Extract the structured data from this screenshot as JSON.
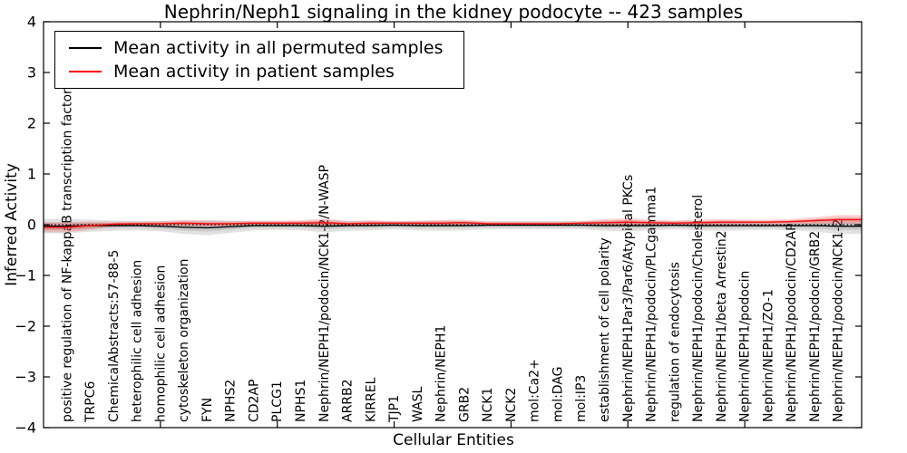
{
  "figure": {
    "title": "Nephrin/Neph1 signaling in the kidney podocyte -- 423 samples",
    "xlabel": "Cellular Entities",
    "ylabel": "Inferred Activity"
  },
  "legend": {
    "position": "upper left",
    "items": [
      {
        "label": "Mean activity in all permuted samples",
        "color": "#000000"
      },
      {
        "label": "Mean activity in patient samples",
        "color": "#ff0000"
      }
    ]
  },
  "chart_data": {
    "type": "line",
    "title": "Nephrin/Neph1 signaling in the kidney podocyte -- 423 samples",
    "xlabel": "Cellular Entities",
    "ylabel": "Inferred Activity",
    "ylim": [
      -4,
      4
    ],
    "yticks": [
      -4,
      -3,
      -2,
      -1,
      0,
      1,
      2,
      3,
      4
    ],
    "xticks": [
      5,
      10,
      15,
      20,
      25,
      30
    ],
    "grid": false,
    "legend_position": "upper left",
    "zero_line": {
      "y": 0,
      "style": "dotted",
      "color": "#000000"
    },
    "categories": [
      "positive regulation of NF-kappaB transcription factor activity",
      "TRPC6",
      "ChemicalAbstracts:57-88-5",
      "heterophilic cell adhesion",
      "homophilic cell adhesion",
      "cytoskeleton organization",
      "FYN",
      "NPHS2",
      "CD2AP",
      "PLCG1",
      "NPHS1",
      "Nephrin/NEPH1/podocin/NCK1-2/N-WASP",
      "ARRB2",
      "KIRREL",
      "TJP1",
      "WASL",
      "Nephrin/NEPH1",
      "GRB2",
      "NCK1",
      "NCK2",
      "mol:Ca2+",
      "mol:DAG",
      "mol:IP3",
      "establishment of cell polarity",
      "Nephrin/NEPH1Par3/Par6/Atypical PKCs",
      "Nephrin/NEPH1/podocin/PLCgamma1",
      "regulation of endocytosis",
      "Nephrin/NEPH1/podocin/Cholesterol",
      "Nephrin/NEPH1/beta Arrestin2",
      "Nephrin/NEPH1/podocin",
      "Nephrin/NEPH1/ZO-1",
      "Nephrin/NEPH1/podocin/CD2AP",
      "Nephrin/NEPH1/podocin/GRB2",
      "Nephrin/NEPH1/podocin/NCK1-2"
    ],
    "series": [
      {
        "name": "Mean activity in all permuted samples",
        "color": "#000000",
        "band_color": "rgba(120,120,120,0.22)",
        "values": [
          -0.03,
          -0.02,
          -0.02,
          -0.02,
          -0.03,
          -0.05,
          -0.06,
          -0.04,
          -0.02,
          -0.02,
          -0.02,
          -0.03,
          -0.02,
          -0.02,
          -0.01,
          -0.02,
          -0.02,
          -0.02,
          -0.01,
          -0.01,
          -0.01,
          -0.01,
          -0.01,
          -0.02,
          -0.02,
          -0.02,
          -0.01,
          -0.02,
          -0.02,
          -0.02,
          -0.02,
          -0.02,
          -0.02,
          -0.03
        ],
        "band_halfwidth": [
          0.14,
          0.12,
          0.1,
          0.09,
          0.1,
          0.13,
          0.15,
          0.12,
          0.09,
          0.08,
          0.09,
          0.12,
          0.1,
          0.09,
          0.08,
          0.09,
          0.1,
          0.09,
          0.08,
          0.08,
          0.08,
          0.08,
          0.08,
          0.1,
          0.11,
          0.09,
          0.08,
          0.09,
          0.1,
          0.09,
          0.08,
          0.09,
          0.12,
          0.15
        ]
      },
      {
        "name": "Mean activity in patient samples",
        "color": "#ee1111",
        "band_color": "rgba(255,30,30,0.20)",
        "values": [
          -0.05,
          -0.02,
          0.01,
          0.02,
          0.02,
          0.03,
          0.02,
          0.02,
          0.03,
          0.03,
          0.03,
          0.04,
          0.02,
          0.03,
          0.03,
          0.03,
          0.03,
          0.04,
          0.02,
          0.02,
          0.02,
          0.02,
          0.03,
          0.04,
          0.05,
          0.04,
          0.03,
          0.04,
          0.05,
          0.05,
          0.05,
          0.06,
          0.08,
          0.1
        ],
        "band_halfwidth": [
          0.1,
          0.08,
          0.05,
          0.04,
          0.05,
          0.06,
          0.06,
          0.05,
          0.05,
          0.05,
          0.06,
          0.08,
          0.05,
          0.06,
          0.04,
          0.05,
          0.06,
          0.06,
          0.04,
          0.04,
          0.04,
          0.04,
          0.04,
          0.07,
          0.08,
          0.06,
          0.05,
          0.06,
          0.06,
          0.05,
          0.05,
          0.05,
          0.07,
          0.09
        ]
      }
    ]
  }
}
